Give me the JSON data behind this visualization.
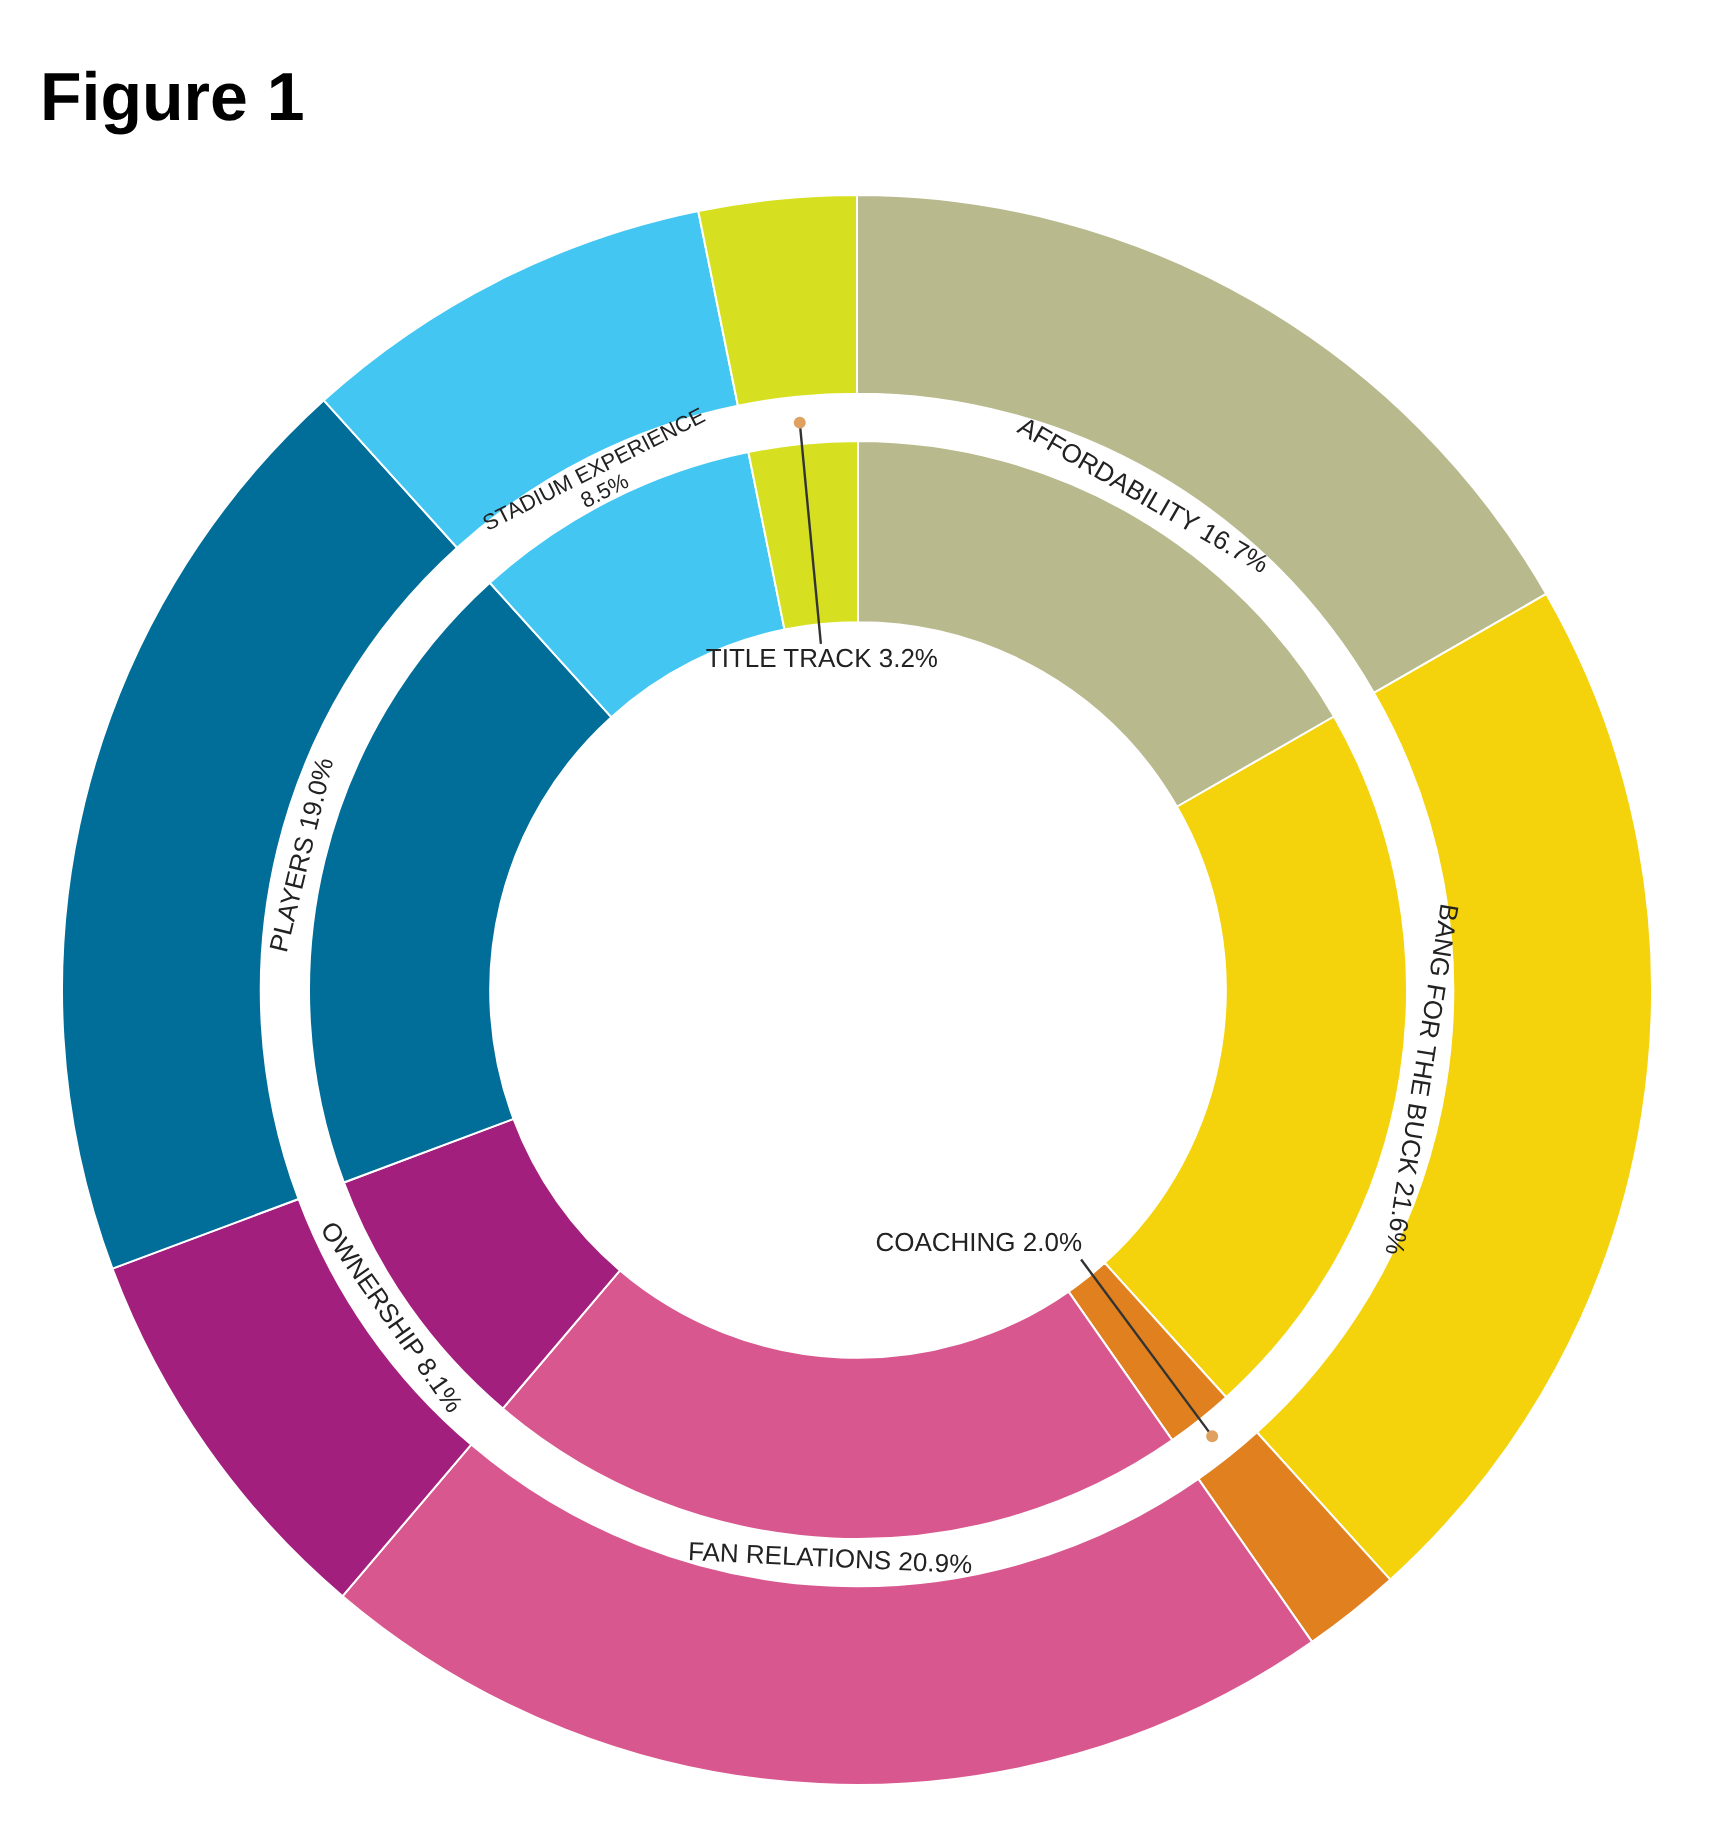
{
  "chart_data": {
    "type": "donut",
    "title": "Figure 1",
    "categories": [
      "AFFORDABILITY",
      "BANG FOR THE BUCK",
      "COACHING",
      "FAN RELATIONS",
      "OWNERSHIP",
      "PLAYERS",
      "STADIUM EXPERIENCE",
      "TITLE TRACK"
    ],
    "series": [
      {
        "values": [
          16.7,
          21.6,
          2.0,
          20.9,
          8.1,
          19.0,
          8.5,
          3.2
        ]
      },
      {
        "values": [
          16.7,
          21.6,
          2.0,
          20.9,
          8.1,
          19.0,
          8.5,
          3.2
        ]
      }
    ],
    "value_labels": [
      "16.7%",
      "21.6%",
      "2.0%",
      "20.9%",
      "8.1%",
      "19.0%",
      "8.5%",
      "3.2%"
    ],
    "colors": [
      "#b9b98e",
      "#f4d30c",
      "#e0801f",
      "#d9578f",
      "#a21f7e",
      "#006e98",
      "#43c7f2",
      "#d6e021"
    ]
  }
}
